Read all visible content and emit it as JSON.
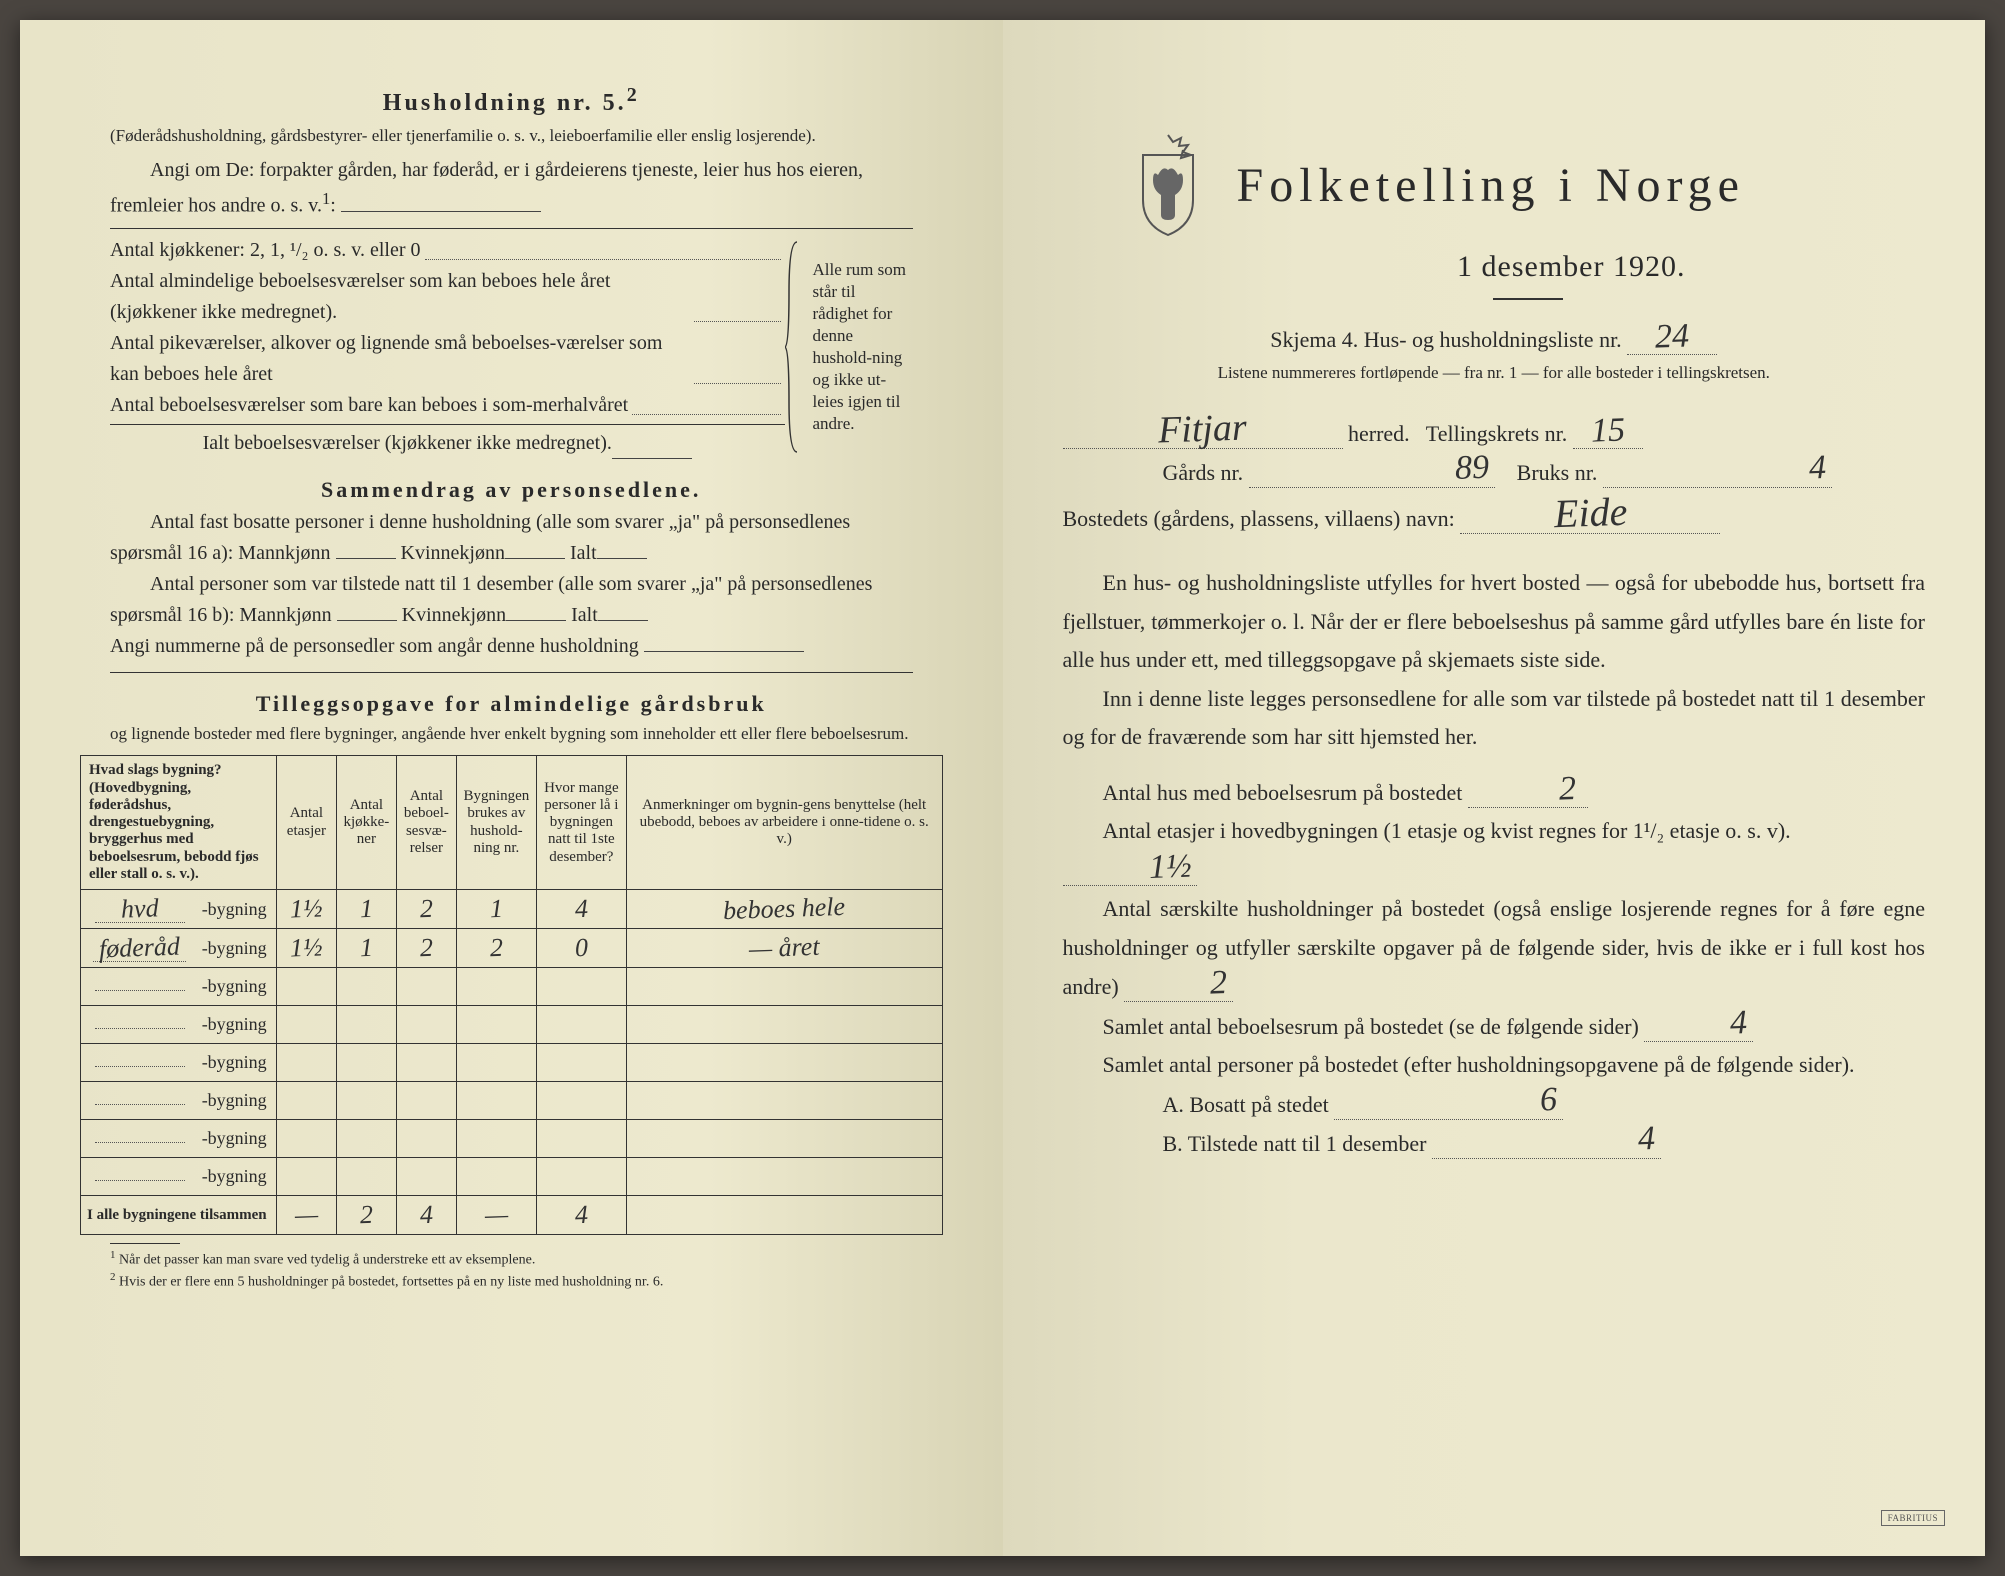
{
  "left": {
    "header_title": "Husholdning nr. 5.",
    "header_sup": "2",
    "header_paren": "(Føderådshusholdning, gårdsbestyrer- eller tjenerfamilie o. s. v., leieboerfamilie eller enslig losjerende).",
    "angi_text": "Angi om De: forpakter gården, har føderåd, er i gårdeierens tjeneste, leier hus hos eieren, fremleier hos andre o. s. v.",
    "angi_sup": "1",
    "kitchens_label": "Antal kjøkkener: 2, 1, ¹/₂ o. s. v. eller 0",
    "rooms_lines": [
      "Antal almindelige beboelsesværelser som kan beboes hele året (kjøkkener ikke medregnet).",
      "Antal pikeværelser, alkover og lignende små beboelses-værelser som kan beboes hele året",
      "Antal beboelsesværelser som bare kan beboes i som-merhalvåret"
    ],
    "ialt_label": "Ialt beboelsesværelser  (kjøkkener ikke medregnet).",
    "brace_text": "Alle rum som står til rådighet for denne hushold-ning og ikke ut-leies igjen til andre.",
    "sammendrag_title": "Sammendrag av personsedlene.",
    "sam_line1_a": "Antal fast bosatte personer i denne husholdning (alle som svarer „ja\" på personsedlenes spørsmål 16 a): Mannkjønn",
    "sam_kvinne": "Kvinnekjønn",
    "sam_ialt": "Ialt",
    "sam_line2": "Antal personer som var tilstede natt til 1 desember (alle som svarer „ja\" på personsedlenes spørsmål 16 b): Mannkjønn",
    "sam_line3": "Angi nummerne på de personsedler som angår denne husholdning",
    "tillegg_title": "Tilleggsopgave for almindelige gårdsbruk",
    "tillegg_sub": "og lignende bosteder med flere bygninger, angående hver enkelt bygning som inneholder ett eller flere beboelsesrum.",
    "table": {
      "headers": [
        "Hvad slags bygning?\n(Hovedbygning, føderådshus, drengestuebygning, bryggerhus med beboelsesrum, bebodd fjøs eller stall o. s. v.).",
        "Antal etasjer",
        "Antal kjøkke-ner",
        "Antal beboel-sesvæ-relser",
        "Bygningen brukes av hushold-ning nr.",
        "Hvor mange personer lå i bygningen natt til 1ste desember?",
        "Anmerkninger om bygnin-gens benyttelse (helt ubebodd, beboes av arbeidere i onne-tidene o. s. v.)"
      ],
      "row_prefix": [
        "hvd",
        "føderåd"
      ],
      "row_suffix": "bygning",
      "rows": [
        [
          "1½",
          "1",
          "2",
          "1",
          "4",
          "beboes hele"
        ],
        [
          "1½",
          "1",
          "2",
          "2",
          "0",
          "— året"
        ],
        [
          "",
          "",
          "",
          "",
          "",
          ""
        ],
        [
          "",
          "",
          "",
          "",
          "",
          ""
        ],
        [
          "",
          "",
          "",
          "",
          "",
          ""
        ],
        [
          "",
          "",
          "",
          "",
          "",
          ""
        ],
        [
          "",
          "",
          "",
          "",
          "",
          ""
        ],
        [
          "",
          "",
          "",
          "",
          "",
          ""
        ]
      ],
      "total_label": "I alle bygningene tilsammen",
      "totals": [
        "—",
        "2",
        "4",
        "—",
        "4",
        ""
      ]
    },
    "footnote1": "Når det passer kan man svare ved tydelig å understreke ett av eksemplene.",
    "footnote2": "Hvis der er flere enn 5 husholdninger på bostedet, fortsettes på en ny liste med husholdning nr. 6."
  },
  "right": {
    "title": "Folketelling i Norge",
    "date": "1 desember 1920.",
    "skjema_label": "Skjema 4.  Hus- og husholdningsliste nr.",
    "skjema_nr": "24",
    "listene_text": "Listene nummereres fortløpende — fra nr. 1 — for alle bosteder i tellingskretsen.",
    "herred_name": "Fitjar",
    "herred_label": "herred.",
    "krets_label": "Tellingskrets nr.",
    "krets_nr": "15",
    "gards_label": "Gårds nr.",
    "gards_nr": "89",
    "bruks_label": "Bruks nr.",
    "bruks_nr": "4",
    "bosted_label": "Bostedets (gårdens, plassens, villaens) navn:",
    "bosted_navn": "Eide",
    "para1": "En hus- og husholdningsliste utfylles for hvert bosted — også for ubebodde hus, bortsett fra fjellstuer, tømmerkojer o. l.  Når der er flere beboelseshus på samme gård utfylles bare én liste for alle hus under ett, med tilleggsopgave på skjemaets siste side.",
    "para2": "Inn i denne liste legges personsedlene for alle som var tilstede på bostedet natt til 1 desember og for de fraværende som har sitt hjemsted her.",
    "q1_label": "Antal hus med beboelsesrum på bostedet",
    "q1_val": "2",
    "q2_label_a": "Antal etasjer i hovedbygningen (1 etasje og kvist regnes for 1¹/₂ etasje o. s. v).",
    "q2_val": "1½",
    "q3_label": "Antal særskilte husholdninger på bostedet (også enslige losjerende regnes for å føre egne husholdninger og utfyller særskilte opgaver på de følgende sider, hvis de ikke er i full kost hos andre)",
    "q3_val": "2",
    "q4_label": "Samlet antal beboelsesrum på bostedet (se de følgende sider)",
    "q4_val": "4",
    "q5_label": "Samlet antal personer på bostedet (efter husholdningsopgavene på de følgende sider).",
    "q5a_label": "A.  Bosatt på stedet",
    "q5a_val": "6",
    "q5b_label": "B.  Tilstede natt til 1 desember",
    "q5b_val": "4"
  }
}
